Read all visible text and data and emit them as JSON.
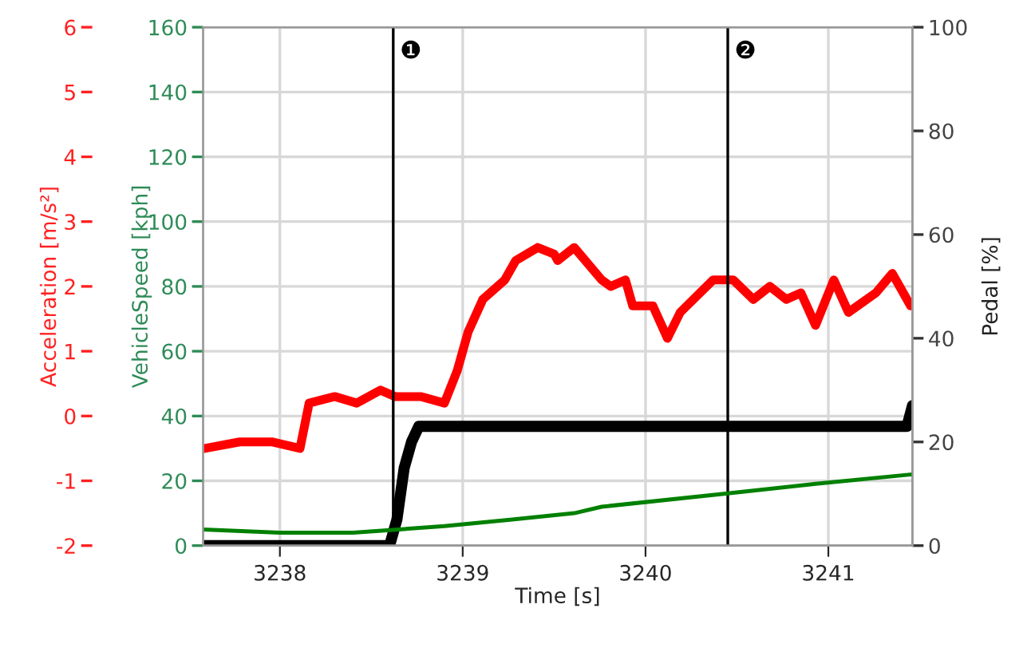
{
  "chart_data": {
    "type": "line",
    "xlabel": "Time [s]",
    "ylabel": "Acceleration [m/s²]",
    "y2label": "Pedal [%]",
    "y3label": "VehicleSpeed [kph]",
    "xlim": [
      3237.58,
      3241.46
    ],
    "xticks": [
      3238,
      3239,
      3240,
      3241
    ],
    "ylim": [
      -2,
      6
    ],
    "yticks": [
      -2,
      -1,
      0,
      1,
      2,
      3,
      4,
      5,
      6
    ],
    "y2lim": [
      0,
      100
    ],
    "y2ticks": [
      0,
      20,
      40,
      60,
      80,
      100
    ],
    "y3lim": [
      0,
      160
    ],
    "y3ticks": [
      0,
      20,
      40,
      60,
      80,
      100,
      120,
      140,
      160
    ],
    "grid": true,
    "line_style": "solid",
    "marker": "none",
    "series": [
      {
        "axis": "y",
        "color": "#ff0000",
        "x": [
          3237.59,
          3237.78,
          3237.96,
          3238.11,
          3238.16,
          3238.3,
          3238.42,
          3238.55,
          3238.63,
          3238.77,
          3238.9,
          3238.97,
          3239.03,
          3239.11,
          3239.23,
          3239.29,
          3239.41,
          3239.5,
          3239.52,
          3239.61,
          3239.76,
          3239.81,
          3239.89,
          3239.93,
          3240.04,
          3240.12,
          3240.19,
          3240.37,
          3240.48,
          3240.59,
          3240.68,
          3240.77,
          3240.85,
          3240.93,
          3241.03,
          3241.11,
          3241.26,
          3241.35,
          3241.45
        ],
        "values": [
          -0.5,
          -0.4,
          -0.4,
          -0.5,
          0.2,
          0.3,
          0.2,
          0.4,
          0.3,
          0.3,
          0.2,
          0.7,
          1.3,
          1.8,
          2.1,
          2.4,
          2.6,
          2.5,
          2.4,
          2.6,
          2.1,
          2.0,
          2.1,
          1.7,
          1.7,
          1.2,
          1.6,
          2.1,
          2.1,
          1.8,
          2.0,
          1.8,
          1.9,
          1.4,
          2.1,
          1.6,
          1.9,
          2.2,
          1.7
        ]
      },
      {
        "axis": "y3",
        "color": "#008000",
        "x": [
          3237.58,
          3238.0,
          3238.4,
          3238.65,
          3238.9,
          3239.26,
          3239.61,
          3239.76,
          3240.43,
          3240.92,
          3241.46
        ],
        "values": [
          5,
          4,
          4,
          5,
          6,
          8,
          10,
          12,
          16,
          19,
          22
        ]
      },
      {
        "axis": "y2",
        "color": "#000000",
        "x": [
          3237.58,
          3238.6,
          3238.64,
          3238.68,
          3238.72,
          3238.76,
          3241.43,
          3241.46
        ],
        "values": [
          0,
          0,
          5,
          15,
          20,
          23,
          23,
          27
        ]
      }
    ],
    "ref_lines": [
      {
        "axis": "x",
        "value": 3238.62,
        "label": "❶",
        "color": "#000000"
      },
      {
        "axis": "x",
        "value": 3240.45,
        "label": "❷",
        "color": "#000000"
      }
    ]
  }
}
